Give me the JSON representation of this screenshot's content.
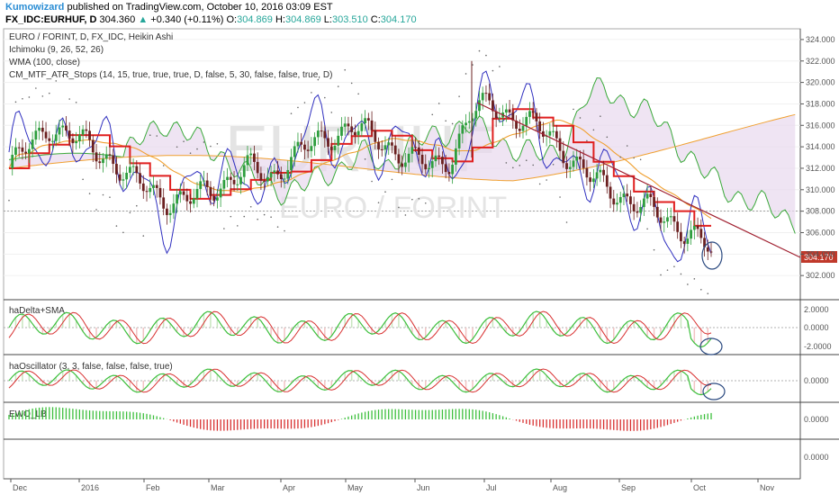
{
  "header": {
    "author": "Kumowizard",
    "published_text": "published on TradingView.com, October 10, 2016 03:09 EST",
    "symbol": "FX_IDC:EURHUF, D",
    "last": "304.360",
    "change_arrow": "▲",
    "change": "+0.340 (+0.11%)",
    "o_label": "O:",
    "o": "304.869",
    "h_label": "H:",
    "h": "304.869",
    "l_label": "L:",
    "l": "303.510",
    "c_label": "C:",
    "c": "304.170"
  },
  "legend": {
    "title": "EURO / FORINT, D, FX_IDC, Heikin Ashi",
    "ichimoku": "Ichimoku (9, 26, 52, 26)",
    "wma": "WMA (100, close)",
    "atr": "CM_MTF_ATR_Stops (14, 15, true, true, true, D, false, 5, 30, false, false, true, D)"
  },
  "watermark": {
    "big": "EURHUF",
    "small": "EURO / FORINT"
  },
  "price_label": "304.170",
  "colors": {
    "up_candle": "#2e9e3e",
    "down_candle": "#6b2020",
    "tenkan": "#2f2fbf",
    "kijun": "#e01f1f",
    "chikou": "#2f2fbf",
    "span_a": "#3aa93a",
    "span_b": "#f0a030",
    "cloud": "#e8d8ee",
    "wma": "#f0a030",
    "trendline": "#a02030",
    "price_label_bg": "#c0392b",
    "osc_green": "#3cbf3c",
    "osc_red": "#d83030",
    "osc_orange": "#f08a10"
  },
  "panels": [
    {
      "label": "haDelta+SMA",
      "ticks": [
        "2.0000",
        "0.0000",
        "-2.0000"
      ]
    },
    {
      "label": "haOscillator (3, 3, false, false, false, true)",
      "ticks": [
        "0.0000"
      ]
    },
    {
      "label": "EWO_LB",
      "ticks": [
        "0.0000"
      ]
    },
    {
      "label": "",
      "ticks": [
        "0.0000"
      ]
    }
  ],
  "chart_data": {
    "type": "candlestick",
    "title": "EURO / FORINT, D, FX_IDC, Heikin Ashi",
    "x_labels": [
      "Dec",
      "2016",
      "Feb",
      "Mar",
      "Apr",
      "May",
      "Jun",
      "Jul",
      "Aug",
      "Sep",
      "Oct",
      "Nov"
    ],
    "y_ticks": [
      302,
      304,
      306,
      308,
      310,
      312,
      314,
      316,
      318,
      320,
      322,
      324
    ],
    "y_tick_labels": [
      "302.000",
      "304.000",
      "306.000",
      "308.000",
      "310.000",
      "312.000",
      "314.000",
      "316.000",
      "318.000",
      "320.000",
      "322.000",
      "324.000"
    ],
    "ylim": [
      300,
      325
    ],
    "last_close": 304.17,
    "price_path_approx": [
      312,
      314,
      316,
      315,
      314,
      313,
      311,
      310,
      309,
      309,
      310,
      311,
      312,
      311,
      313,
      314,
      315,
      316,
      315,
      314,
      313,
      312,
      313,
      317,
      318,
      317,
      316,
      315,
      313,
      311,
      310,
      309,
      308,
      307,
      306,
      304.2
    ]
  }
}
